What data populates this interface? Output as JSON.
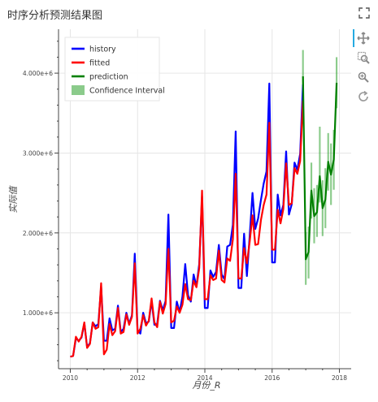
{
  "header": {
    "title": "时序分析预测结果图"
  },
  "toolbar": {
    "icons": [
      "pan-icon",
      "box-zoom-icon",
      "wheel-zoom-icon",
      "reset-icon"
    ],
    "active_color": "#26aae1"
  },
  "chart_data": {
    "type": "line",
    "title": "时序分析预测结果图",
    "xlabel": "月份_R",
    "ylabel": "实际值",
    "xlim": [
      2009.65,
      2018.35
    ],
    "ylim": [
      300000,
      4550000
    ],
    "x_ticks": [
      2010,
      2012,
      2014,
      2016,
      2018
    ],
    "x_tick_labels": [
      "2010",
      "2012",
      "2014",
      "2016",
      "2018"
    ],
    "y_ticks": [
      1000000,
      2000000,
      3000000,
      4000000
    ],
    "y_tick_labels": [
      "1.000e+6",
      "2.000e+6",
      "3.000e+6",
      "4.000e+6"
    ],
    "grid": true,
    "legend": {
      "position": "top-left"
    },
    "series": [
      {
        "name": "history",
        "color": "#0000ff",
        "x_start": 2010.0,
        "x_step": 0.08333,
        "values": [
          450000,
          460000,
          680000,
          650000,
          690000,
          870000,
          570000,
          620000,
          880000,
          830000,
          860000,
          1330000,
          650000,
          650000,
          930000,
          780000,
          800000,
          1090000,
          760000,
          800000,
          1000000,
          860000,
          970000,
          1740000,
          780000,
          740000,
          1000000,
          870000,
          890000,
          1150000,
          850000,
          860000,
          1150000,
          1030000,
          1150000,
          2230000,
          810000,
          810000,
          1140000,
          1010000,
          1200000,
          1610000,
          1220000,
          1140000,
          1480000,
          1330000,
          1610000,
          2460000,
          1060000,
          1060000,
          1530000,
          1450000,
          1510000,
          1850000,
          1480000,
          1420000,
          1830000,
          1850000,
          2100000,
          3270000,
          1310000,
          1310000,
          1990000,
          1460000,
          1960000,
          2500000,
          2050000,
          2180000,
          2410000,
          2620000,
          2770000,
          3870000,
          1630000,
          1630000,
          2480000,
          2220000,
          2350000,
          3020000,
          2230000,
          2360000,
          2880000,
          2790000,
          2990000,
          3860000
        ]
      },
      {
        "name": "fitted",
        "color": "#ff0000",
        "x_start": 2010.0,
        "x_step": 0.08333,
        "values": [
          450000,
          460000,
          700000,
          640000,
          700000,
          880000,
          560000,
          610000,
          880000,
          800000,
          820000,
          1370000,
          480000,
          540000,
          860000,
          720000,
          770000,
          1060000,
          740000,
          760000,
          980000,
          850000,
          950000,
          1620000,
          740000,
          800000,
          970000,
          840000,
          900000,
          1180000,
          880000,
          820000,
          1140000,
          990000,
          1110000,
          1800000,
          880000,
          900000,
          1080000,
          1000000,
          1100000,
          1360000,
          1170000,
          1160000,
          1400000,
          1320000,
          1560000,
          2530000,
          1170000,
          1170000,
          1470000,
          1410000,
          1430000,
          1780000,
          1410000,
          1380000,
          1680000,
          1650000,
          1920000,
          2740000,
          1430000,
          1430000,
          1810000,
          1620000,
          1890000,
          2220000,
          1850000,
          1860000,
          2160000,
          2350000,
          2480000,
          3380000,
          1790000,
          1790000,
          2290000,
          2120000,
          2300000,
          2870000,
          2350000,
          2370000,
          2810000,
          2740000,
          2900000,
          3660000
        ]
      },
      {
        "name": "prediction",
        "color": "#008000",
        "x_start": 2016.917,
        "x_step": 0.08333,
        "values": [
          3960000,
          1670000,
          1760000,
          2530000,
          2210000,
          2260000,
          2710000,
          2310000,
          2420000,
          2890000,
          2730000,
          2920000,
          3880000
        ]
      }
    ],
    "confidence_interval": {
      "name": "Confidence Interval",
      "color": "#2ca02c",
      "x_start": 2016.917,
      "x_step": 0.08333,
      "lower": [
        3620000,
        1350000,
        1430000,
        2180000,
        1870000,
        1950000,
        2380000,
        1960000,
        2060000,
        2530000,
        2350000,
        2540000,
        3560000
      ],
      "upper": [
        4290000,
        2010000,
        2080000,
        2880000,
        2560000,
        2600000,
        3330000,
        2660000,
        2810000,
        3250000,
        3120000,
        3290000,
        4200000
      ]
    }
  }
}
